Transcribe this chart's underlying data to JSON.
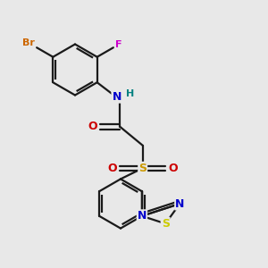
{
  "background_color": "#e8e8e8",
  "bond_color": "#1a1a1a",
  "atom_colors": {
    "Br": "#cc6600",
    "F": "#cc00cc",
    "N": "#0000cc",
    "O": "#cc0000",
    "S_sulfonyl": "#cc9900",
    "S_thiadiazole": "#cccc00",
    "H": "#008080",
    "C": "#1a1a1a"
  },
  "figsize": [
    3.0,
    3.0
  ],
  "dpi": 100
}
